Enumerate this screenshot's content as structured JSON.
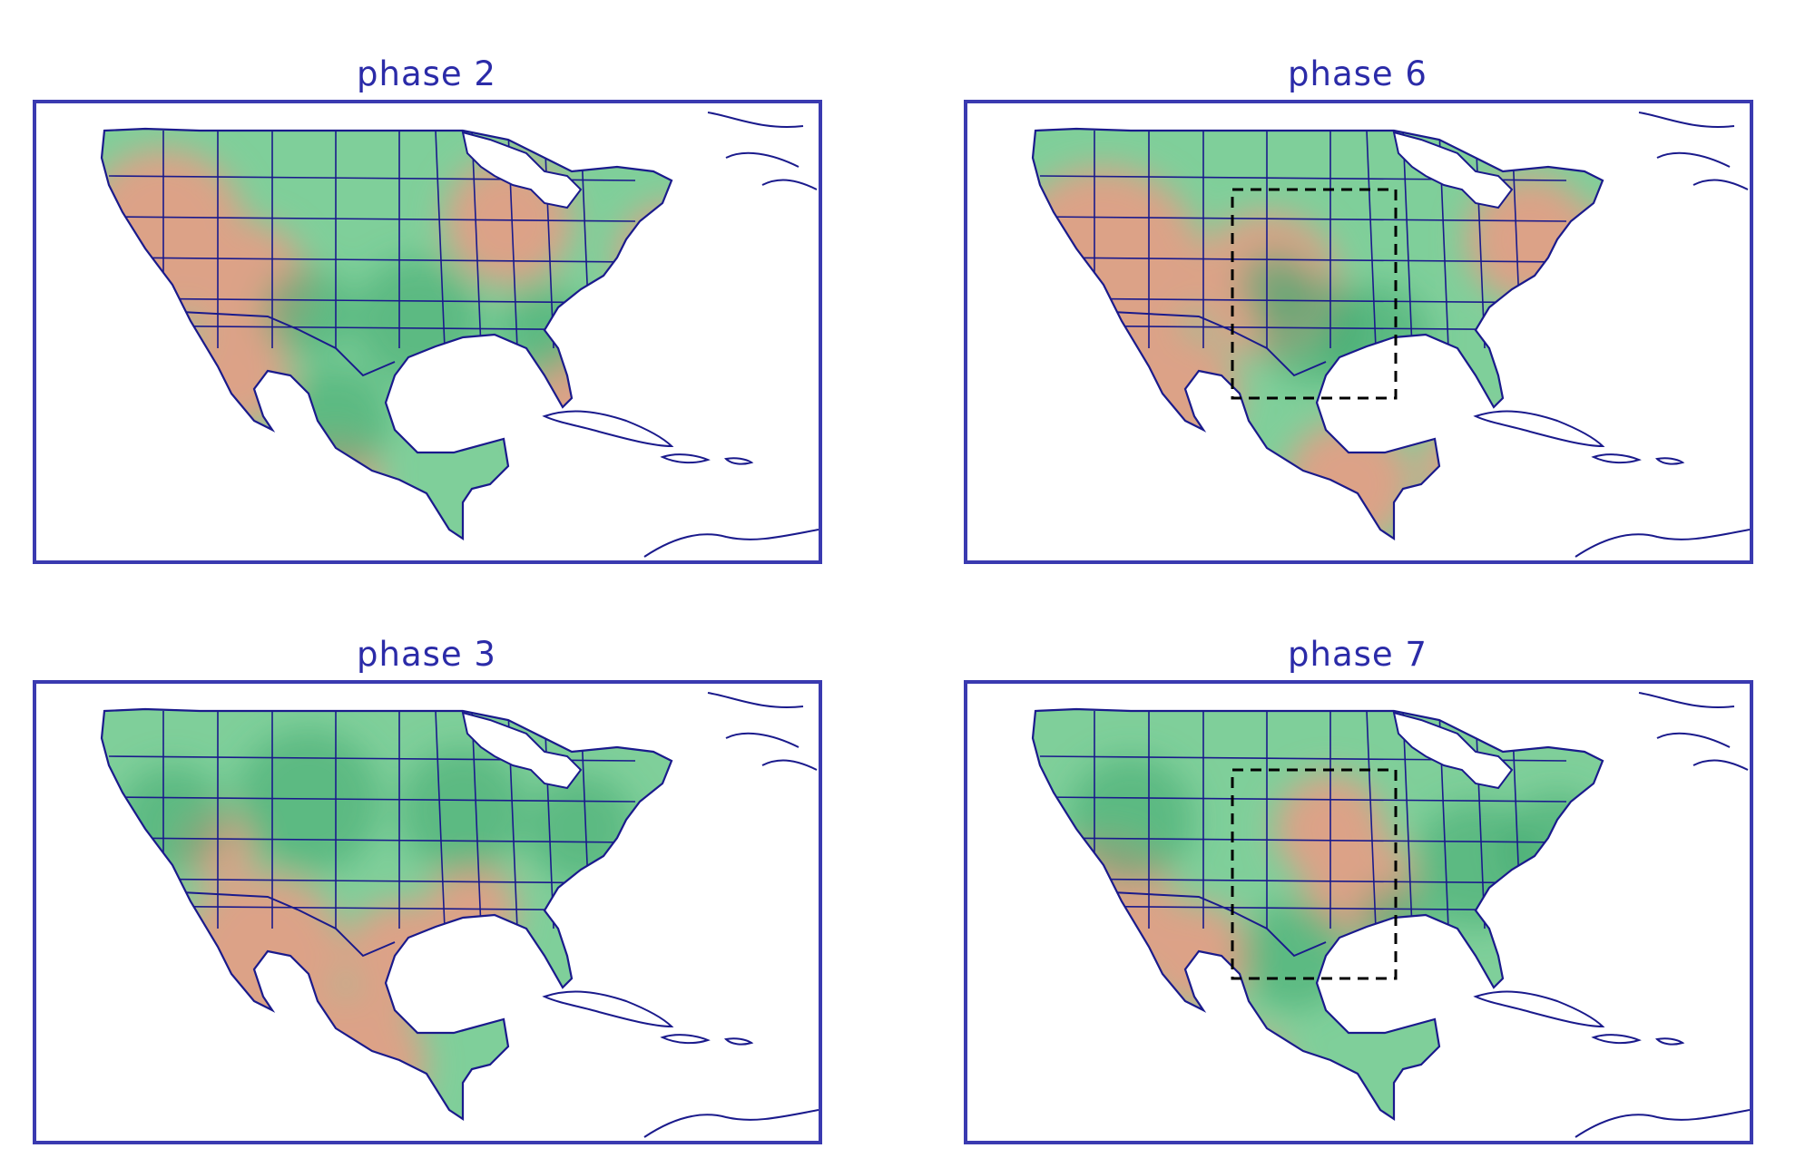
{
  "panels": [
    {
      "id": "p2",
      "title": "phase 2",
      "box": false,
      "dry": [
        [
          140,
          140,
          90
        ],
        [
          230,
          200,
          70
        ],
        [
          520,
          130,
          70
        ],
        [
          700,
          170,
          60
        ],
        [
          600,
          330,
          60
        ],
        [
          330,
          420,
          50
        ],
        [
          220,
          300,
          60
        ],
        [
          110,
          250,
          50
        ]
      ],
      "wet": [
        [
          420,
          240,
          70
        ],
        [
          560,
          250,
          50
        ],
        [
          300,
          230,
          50
        ],
        [
          330,
          350,
          60
        ]
      ]
    },
    {
      "id": "p6",
      "title": "phase 6",
      "box": true,
      "dry": [
        [
          150,
          180,
          110
        ],
        [
          330,
          200,
          80
        ],
        [
          620,
          150,
          70
        ],
        [
          700,
          180,
          60
        ],
        [
          420,
          420,
          70
        ],
        [
          550,
          400,
          50
        ],
        [
          230,
          320,
          70
        ]
      ],
      "wet": [
        [
          380,
          250,
          60
        ],
        [
          450,
          260,
          60
        ],
        [
          340,
          200,
          40
        ]
      ]
    },
    {
      "id": "p3",
      "title": "phase 3",
      "box": false,
      "dry": [
        [
          250,
          300,
          90
        ],
        [
          350,
          420,
          80
        ],
        [
          400,
          300,
          60
        ],
        [
          480,
          250,
          50
        ],
        [
          200,
          180,
          40
        ]
      ],
      "wet": [
        [
          300,
          130,
          80
        ],
        [
          470,
          140,
          70
        ],
        [
          600,
          160,
          60
        ],
        [
          150,
          150,
          60
        ]
      ]
    },
    {
      "id": "p7",
      "title": "phase 7",
      "box": true,
      "dry": [
        [
          150,
          250,
          80
        ],
        [
          400,
          160,
          60
        ],
        [
          430,
          220,
          60
        ],
        [
          250,
          300,
          60
        ],
        [
          300,
          440,
          60
        ]
      ],
      "wet": [
        [
          180,
          150,
          70
        ],
        [
          360,
          300,
          60
        ],
        [
          560,
          200,
          70
        ],
        [
          650,
          180,
          60
        ],
        [
          470,
          260,
          40
        ]
      ]
    }
  ],
  "colors": {
    "frame": "#3a3ab0",
    "title": "#2b2ba8",
    "coast": "#1a1a8c",
    "wet": "#7fcf9a",
    "wet_dark": "#3fa870",
    "dry": "#dca287",
    "dry_dark": "#c07a4e",
    "ocean": "#ffffff"
  }
}
